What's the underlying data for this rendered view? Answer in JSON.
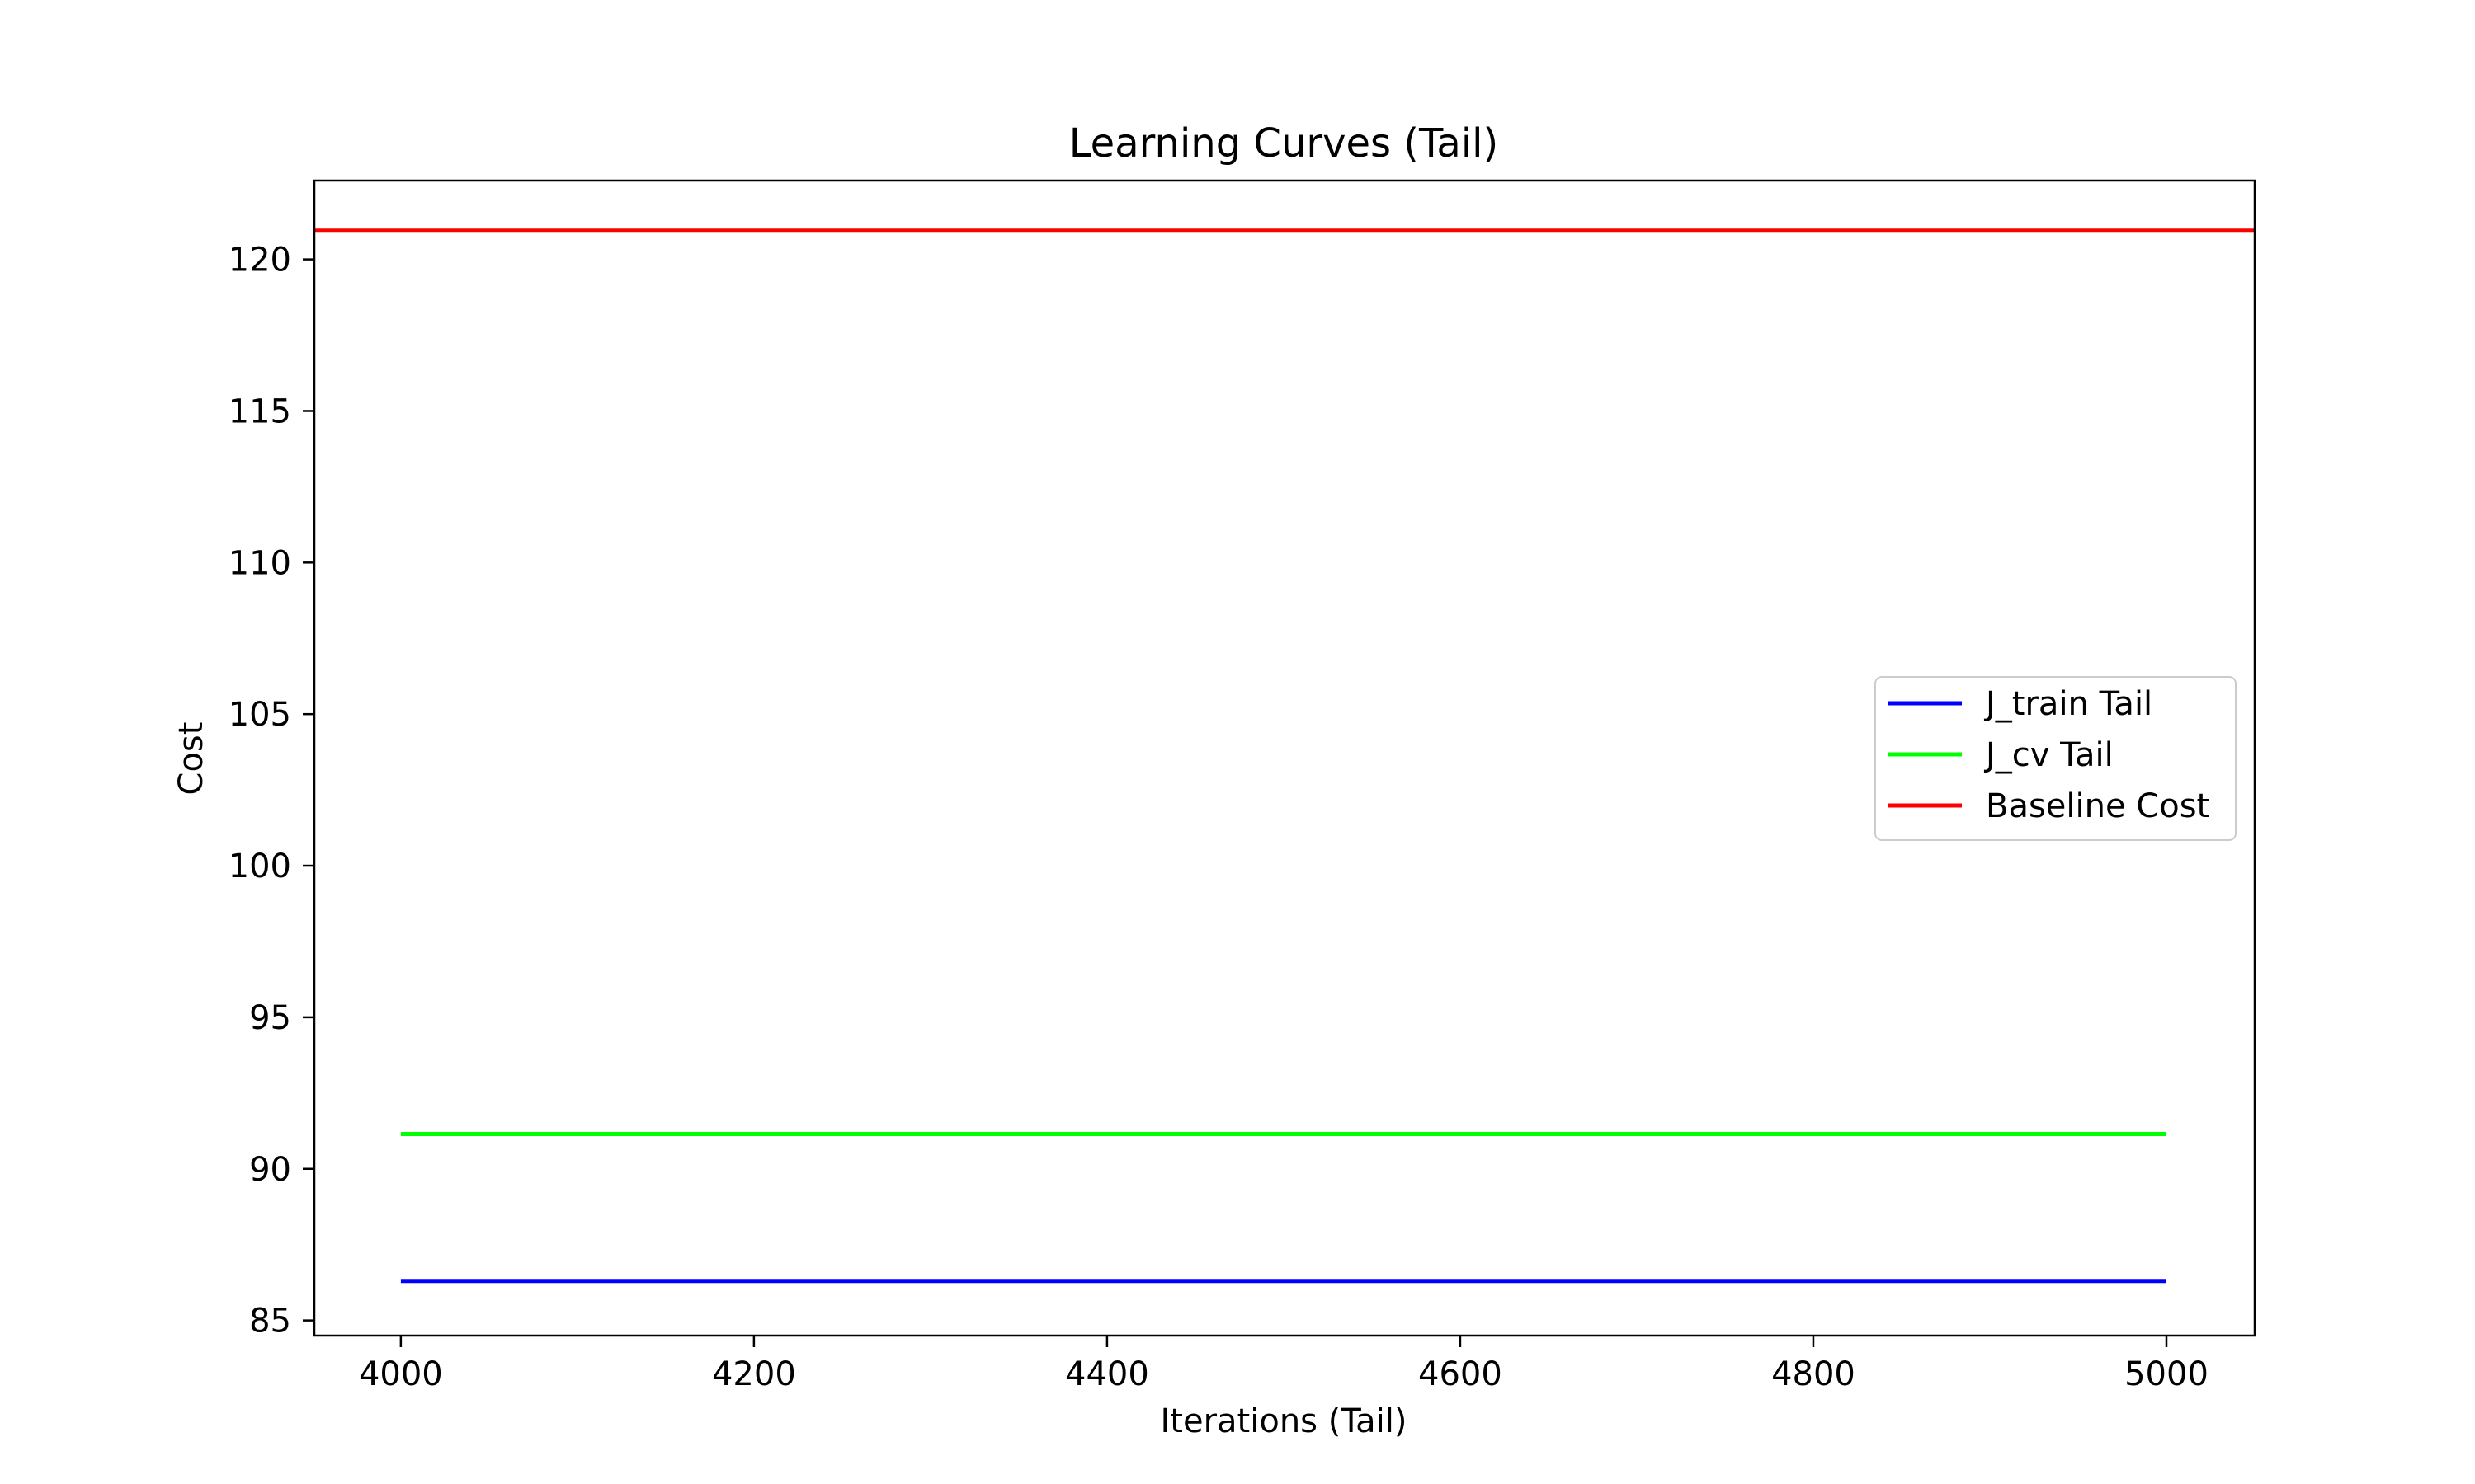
{
  "chart_data": {
    "type": "line",
    "title": "Learning Curves (Tail)",
    "xlabel": "Iterations (Tail)",
    "ylabel": "Cost",
    "xlim": [
      3951,
      5050
    ],
    "ylim": [
      84.5,
      122.6
    ],
    "xticks": [
      4000,
      4200,
      4400,
      4600,
      4800,
      5000
    ],
    "yticks": [
      85,
      90,
      95,
      100,
      105,
      110,
      115,
      120
    ],
    "grid": false,
    "legend_position": "center-right",
    "series": [
      {
        "name": "J_train Tail",
        "color": "#0000ff",
        "x": [
          4000,
          5000
        ],
        "y": [
          86.3,
          86.3
        ]
      },
      {
        "name": "J_cv Tail",
        "color": "#00ff00",
        "x": [
          4000,
          5000
        ],
        "y": [
          91.15,
          91.15
        ]
      },
      {
        "name": "Baseline Cost",
        "color": "#ff0000",
        "x": [
          3951,
          5050
        ],
        "y": [
          120.95,
          120.95
        ]
      }
    ]
  }
}
